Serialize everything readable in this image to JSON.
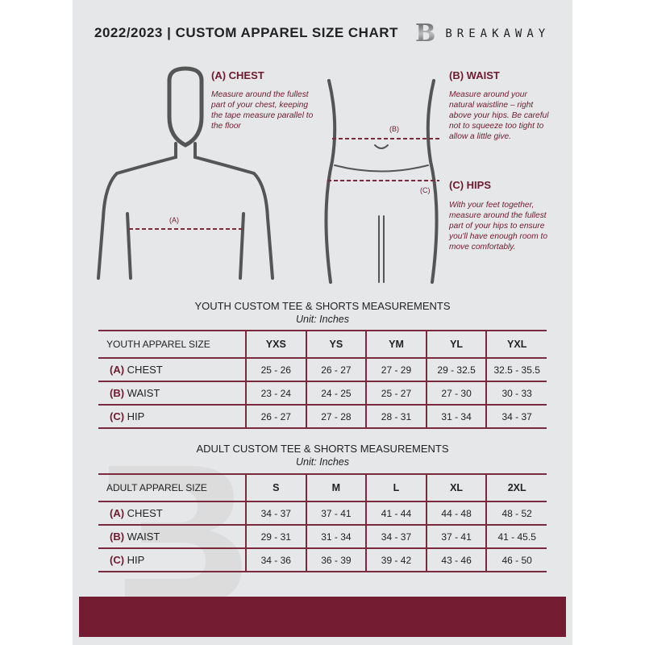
{
  "header": {
    "title": "2022/2023  |  CUSTOM APPAREL SIZE CHART",
    "logo_mark": "B",
    "brand": "BREAKAWAY"
  },
  "colors": {
    "accent": "#731c32",
    "panel": "#e6e7e8"
  },
  "guide": {
    "chest": {
      "heading": "(A) CHEST",
      "text": "Measure around the fullest part of your chest, keeping the tape measure parallel to the floor",
      "marker": "(A)"
    },
    "waist": {
      "heading": "(B) WAIST",
      "text": "Measure around your natural waistline – right above your hips. Be careful not to squeeze too tight to allow a little give.",
      "marker": "(B)"
    },
    "hips": {
      "heading": "(C) HIPS",
      "text": "With your feet together, measure around the fullest part of your hips to ensure you'll have enough room to move comfortably.",
      "marker": "(C)"
    }
  },
  "youth": {
    "title": "YOUTH CUSTOM TEE & SHORTS MEASUREMENTS",
    "unit": "Unit: Inches",
    "size_label": "YOUTH APPAREL SIZE",
    "sizes": [
      "YXS",
      "YS",
      "YM",
      "YL",
      "YXL"
    ],
    "rows": [
      {
        "letter": "(A)",
        "name": "CHEST",
        "values": [
          "25 - 26",
          "26 - 27",
          "27 - 29",
          "29 - 32.5",
          "32.5 - 35.5"
        ]
      },
      {
        "letter": "(B)",
        "name": "WAIST",
        "values": [
          "23 - 24",
          "24 - 25",
          "25 - 27",
          "27 - 30",
          "30 - 33"
        ]
      },
      {
        "letter": "(C)",
        "name": "HIP",
        "values": [
          "26 - 27",
          "27 - 28",
          "28 - 31",
          "31 - 34",
          "34 - 37"
        ]
      }
    ]
  },
  "adult": {
    "title": "ADULT CUSTOM TEE & SHORTS MEASUREMENTS",
    "unit": "Unit: Inches",
    "size_label": "ADULT APPAREL SIZE",
    "sizes": [
      "S",
      "M",
      "L",
      "XL",
      "2XL"
    ],
    "rows": [
      {
        "letter": "(A)",
        "name": "CHEST",
        "values": [
          "34 - 37",
          "37 - 41",
          "41 - 44",
          "44 - 48",
          "48 - 52"
        ]
      },
      {
        "letter": "(B)",
        "name": "WAIST",
        "values": [
          "29 - 31",
          "31 - 34",
          "34 - 37",
          "37 - 41",
          "41 - 45.5"
        ]
      },
      {
        "letter": "(C)",
        "name": "HIP",
        "values": [
          "34 - 36",
          "36 - 39",
          "39 - 42",
          "43 - 46",
          "46 - 50"
        ]
      }
    ]
  }
}
